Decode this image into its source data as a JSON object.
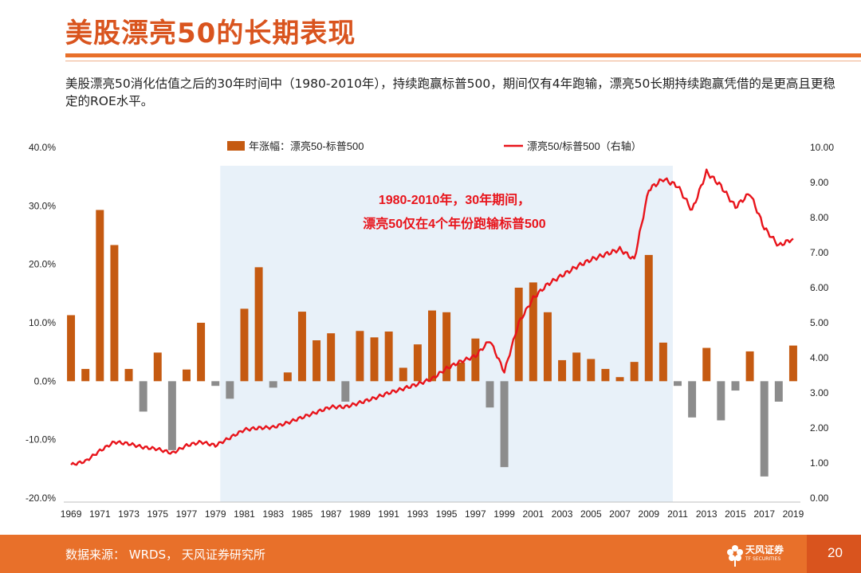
{
  "page": {
    "title": "美股漂亮50的长期表现",
    "description": "美股漂亮50消化估值之后的30年时间中（1980-2010年），持续跑赢标普500，期间仅有4年跑输，漂亮50长期持续跑赢凭借的是更高且更稳定的ROE水平。",
    "footer_source": "数据来源： WRDS， 天风证券研究所",
    "footer_brand": "天风证券",
    "footer_brand_sub": "TF SECURITIES",
    "page_number": "20"
  },
  "chart_data": {
    "type": "bar+line",
    "legend_placement": "top",
    "series": [
      {
        "name": "年涨幅：漂亮50-标普500",
        "type": "bar",
        "axis": "left",
        "positive_color": "#c55a11",
        "negative_color": "#8c8c8c",
        "x": [
          1969,
          1970,
          1971,
          1972,
          1973,
          1974,
          1975,
          1976,
          1977,
          1978,
          1979,
          1980,
          1981,
          1982,
          1983,
          1984,
          1985,
          1986,
          1987,
          1988,
          1989,
          1990,
          1991,
          1992,
          1993,
          1994,
          1995,
          1996,
          1997,
          1998,
          1999,
          2000,
          2001,
          2002,
          2003,
          2004,
          2005,
          2006,
          2007,
          2008,
          2009,
          2010,
          2011,
          2012,
          2013,
          2014,
          2015,
          2016,
          2017,
          2018,
          2019
        ],
        "values": [
          11.3,
          2.1,
          29.3,
          23.3,
          2.1,
          -5.2,
          4.9,
          -11.8,
          2.0,
          10.0,
          -0.8,
          -3.0,
          12.4,
          19.5,
          -1.1,
          1.5,
          11.9,
          7.0,
          8.2,
          -3.5,
          8.6,
          7.5,
          8.5,
          2.3,
          6.3,
          12.1,
          11.8,
          3.2,
          7.3,
          -4.5,
          -14.7,
          16.0,
          16.9,
          11.8,
          3.6,
          4.9,
          3.8,
          2.1,
          0.7,
          3.3,
          21.6,
          6.6,
          -0.8,
          -6.2,
          5.7,
          -6.7,
          -1.6,
          5.1,
          -16.3,
          -3.5,
          6.1
        ]
      },
      {
        "name": "漂亮50/标普500（右轴）",
        "type": "line",
        "axis": "right",
        "color": "#e8141b",
        "x": [
          1969,
          1970,
          1971,
          1972,
          1973,
          1974,
          1975,
          1976,
          1977,
          1978,
          1979,
          1980,
          1981,
          1982,
          1983,
          1984,
          1985,
          1986,
          1987,
          1988,
          1989,
          1990,
          1991,
          1992,
          1993,
          1994,
          1995,
          1996,
          1997,
          1998,
          1999,
          2000,
          2001,
          2002,
          2003,
          2004,
          2005,
          2006,
          2007,
          2008,
          2009,
          2010,
          2011,
          2012,
          2013,
          2014,
          2015,
          2016,
          2017,
          2018,
          2019
        ],
        "values": [
          0.95,
          1.05,
          1.35,
          1.6,
          1.55,
          1.45,
          1.4,
          1.28,
          1.5,
          1.6,
          1.5,
          1.72,
          1.95,
          2.0,
          2.02,
          2.15,
          2.3,
          2.45,
          2.6,
          2.6,
          2.72,
          2.85,
          3.0,
          3.12,
          3.25,
          3.4,
          3.7,
          3.9,
          4.05,
          4.5,
          3.6,
          5.0,
          5.7,
          6.1,
          6.35,
          6.6,
          6.8,
          6.95,
          7.1,
          6.8,
          8.8,
          9.1,
          8.9,
          8.2,
          9.3,
          8.9,
          8.3,
          8.7,
          7.7,
          7.2,
          7.4
        ]
      }
    ],
    "y_left": {
      "ylim": [
        -20,
        40
      ],
      "ticks": [
        "40.0%",
        "30.0%",
        "20.0%",
        "10.0%",
        "0.0%",
        "-10.0%",
        "-20.0%"
      ]
    },
    "y_right": {
      "ylim": [
        0,
        10
      ],
      "ticks": [
        "10.00",
        "9.00",
        "8.00",
        "7.00",
        "6.00",
        "5.00",
        "4.00",
        "3.00",
        "2.00",
        "1.00",
        "0.00"
      ]
    },
    "x_ticks": [
      "1969",
      "1971",
      "1973",
      "1975",
      "1977",
      "1979",
      "1981",
      "1983",
      "1985",
      "1987",
      "1989",
      "1991",
      "1993",
      "1995",
      "1997",
      "1999",
      "2001",
      "2003",
      "2005",
      "2007",
      "2009",
      "2011",
      "2013",
      "2015",
      "2017",
      "2019"
    ],
    "highlight": {
      "from": 1980,
      "to": 2010,
      "color": "#e8f1f9"
    },
    "annotations": [
      "1980-2010年，30年期间，",
      "漂亮50仅在4个年份跑输标普500"
    ],
    "annotation_color": "#e8141b",
    "grid": false
  }
}
